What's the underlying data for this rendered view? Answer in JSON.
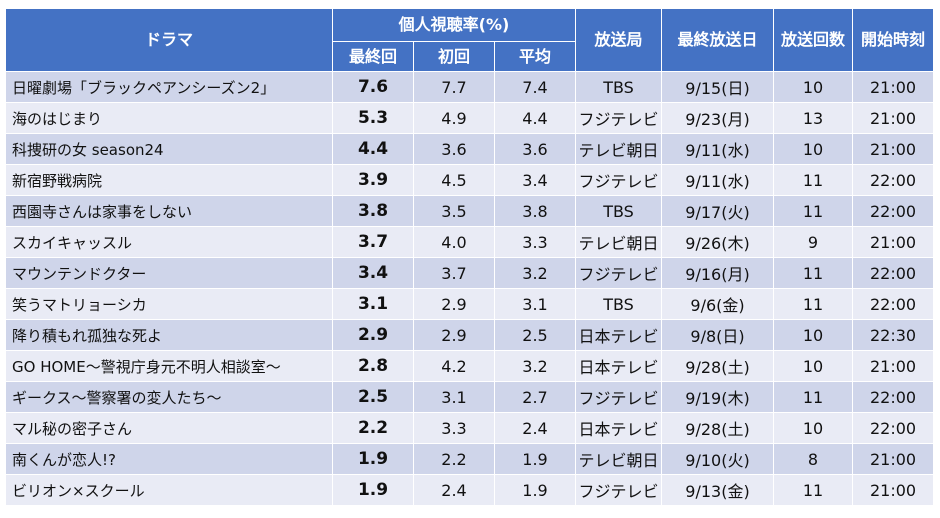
{
  "chart_data": {
    "type": "table",
    "headers": {
      "drama": "ドラマ",
      "rating_group": "個人視聴率(%)",
      "final": "最終回",
      "first": "初回",
      "average": "平均",
      "station": "放送局",
      "final_date": "最終放送日",
      "episodes": "放送回数",
      "start_time": "開始時刻"
    },
    "rows": [
      {
        "title": "日曜劇場「ブラックペアンシーズン2」",
        "final": "7.6",
        "first": "7.7",
        "average": "7.4",
        "station": "TBS",
        "final_date": "9/15(日)",
        "episodes": "10",
        "start_time": "21:00"
      },
      {
        "title": "海のはじまり",
        "final": "5.3",
        "first": "4.9",
        "average": "4.4",
        "station": "フジテレビ",
        "final_date": "9/23(月)",
        "episodes": "13",
        "start_time": "21:00"
      },
      {
        "title": "科捜研の女 season24",
        "final": "4.4",
        "first": "3.6",
        "average": "3.6",
        "station": "テレビ朝日",
        "final_date": "9/11(水)",
        "episodes": "10",
        "start_time": "21:00"
      },
      {
        "title": "新宿野戦病院",
        "final": "3.9",
        "first": "4.5",
        "average": "3.4",
        "station": "フジテレビ",
        "final_date": "9/11(水)",
        "episodes": "11",
        "start_time": "22:00"
      },
      {
        "title": "西園寺さんは家事をしない",
        "final": "3.8",
        "first": "3.5",
        "average": "3.8",
        "station": "TBS",
        "final_date": "9/17(火)",
        "episodes": "11",
        "start_time": "22:00"
      },
      {
        "title": "スカイキャッスル",
        "final": "3.7",
        "first": "4.0",
        "average": "3.3",
        "station": "テレビ朝日",
        "final_date": "9/26(木)",
        "episodes": "9",
        "start_time": "21:00"
      },
      {
        "title": "マウンテンドクター",
        "final": "3.4",
        "first": "3.7",
        "average": "3.2",
        "station": "フジテレビ",
        "final_date": "9/16(月)",
        "episodes": "11",
        "start_time": "22:00"
      },
      {
        "title": "笑うマトリョーシカ",
        "final": "3.1",
        "first": "2.9",
        "average": "3.1",
        "station": "TBS",
        "final_date": "9/6(金)",
        "episodes": "11",
        "start_time": "22:00"
      },
      {
        "title": "降り積もれ孤独な死よ",
        "final": "2.9",
        "first": "2.9",
        "average": "2.5",
        "station": "日本テレビ",
        "final_date": "9/8(日)",
        "episodes": "10",
        "start_time": "22:30"
      },
      {
        "title": "GO HOME～警視庁身元不明人相談室～",
        "final": "2.8",
        "first": "4.2",
        "average": "3.2",
        "station": "日本テレビ",
        "final_date": "9/28(土)",
        "episodes": "10",
        "start_time": "21:00"
      },
      {
        "title": "ギークス～警察署の変人たち～",
        "final": "2.5",
        "first": "3.1",
        "average": "2.7",
        "station": "フジテレビ",
        "final_date": "9/19(木)",
        "episodes": "11",
        "start_time": "22:00"
      },
      {
        "title": "マル秘の密子さん",
        "final": "2.2",
        "first": "3.3",
        "average": "2.4",
        "station": "日本テレビ",
        "final_date": "9/28(土)",
        "episodes": "10",
        "start_time": "22:00"
      },
      {
        "title": "南くんが恋人!?",
        "final": "1.9",
        "first": "2.2",
        "average": "1.9",
        "station": "テレビ朝日",
        "final_date": "9/10(火)",
        "episodes": "8",
        "start_time": "21:00"
      },
      {
        "title": "ビリオン×スクール",
        "final": "1.9",
        "first": "2.4",
        "average": "1.9",
        "station": "フジテレビ",
        "final_date": "9/13(金)",
        "episodes": "11",
        "start_time": "21:00"
      }
    ],
    "colors": {
      "header": "#4472c4",
      "row_odd": "#cfd5ea",
      "row_even": "#e9ebf5"
    }
  }
}
